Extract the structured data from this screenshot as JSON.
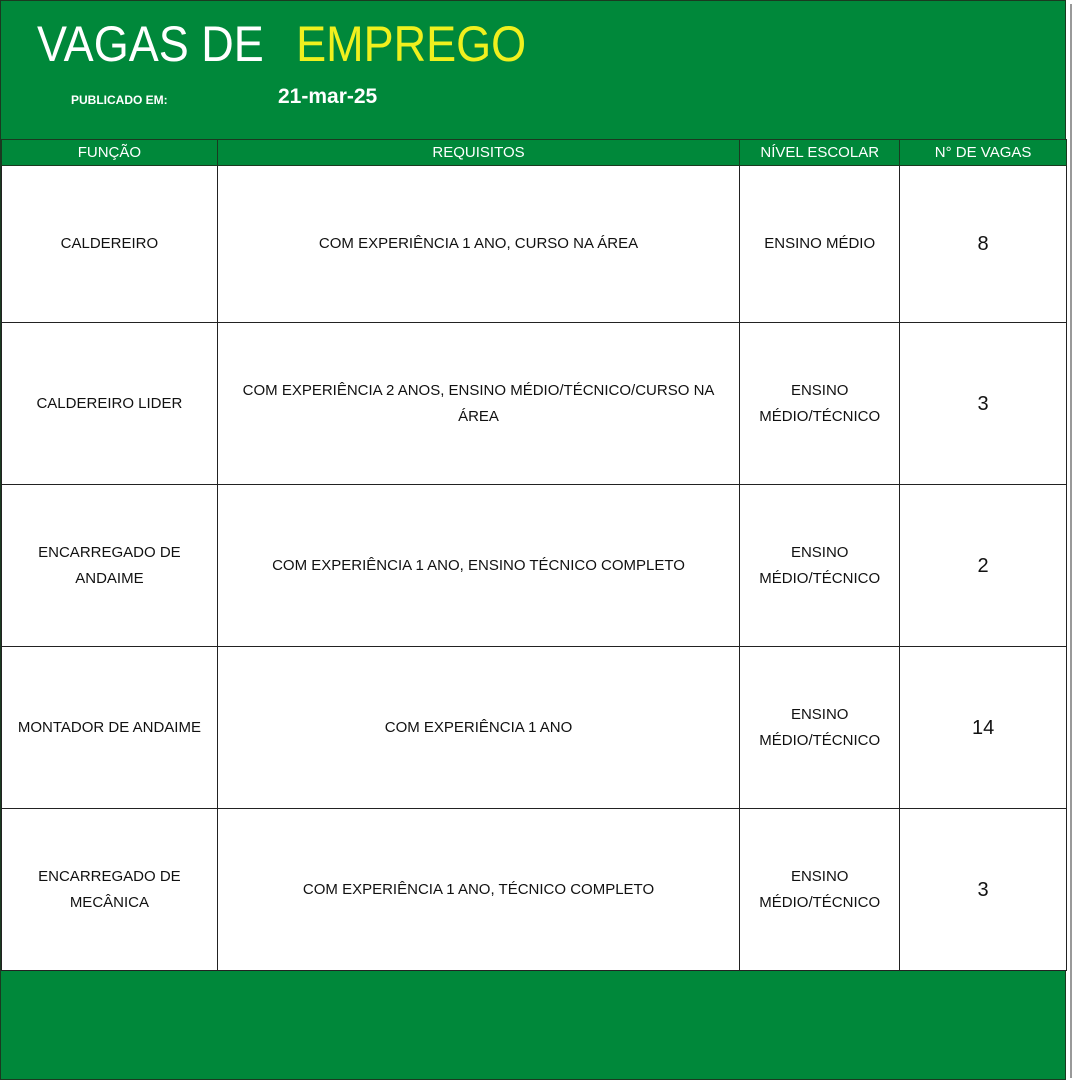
{
  "header": {
    "title_white": "VAGAS DE",
    "title_yellow": "EMPREGO",
    "published_label": "PUBLICADO EM:",
    "published_date": "21-mar-25"
  },
  "colors": {
    "green": "#00883a",
    "yellow": "#f0f01e"
  },
  "table": {
    "columns": [
      "FUNÇÃO",
      "REQUISITOS",
      "NÍVEL ESCOLAR",
      "N° DE VAGAS"
    ],
    "rows": [
      {
        "funcao": "CALDEREIRO",
        "requisitos": "COM EXPERIÊNCIA 1 ANO, CURSO NA ÁREA",
        "nivel": "ENSINO MÉDIO",
        "vagas": "8"
      },
      {
        "funcao": "CALDEREIRO LIDER",
        "requisitos": "COM EXPERIÊNCIA 2 ANOS, ENSINO MÉDIO/TÉCNICO/CURSO NA ÁREA",
        "nivel": "ENSINO MÉDIO/TÉCNICO",
        "vagas": "3"
      },
      {
        "funcao": "ENCARREGADO DE ANDAIME",
        "requisitos": "COM EXPERIÊNCIA 1 ANO, ENSINO TÉCNICO COMPLETO",
        "nivel": "ENSINO MÉDIO/TÉCNICO",
        "vagas": "2"
      },
      {
        "funcao": "MONTADOR DE ANDAIME",
        "requisitos": "COM EXPERIÊNCIA 1 ANO",
        "nivel": "ENSINO MÉDIO/TÉCNICO",
        "vagas": "14"
      },
      {
        "funcao": "ENCARREGADO DE MECÂNICA",
        "requisitos": "COM EXPERIÊNCIA 1 ANO, TÉCNICO COMPLETO",
        "nivel": "ENSINO MÉDIO/TÉCNICO",
        "vagas": "3"
      }
    ]
  }
}
